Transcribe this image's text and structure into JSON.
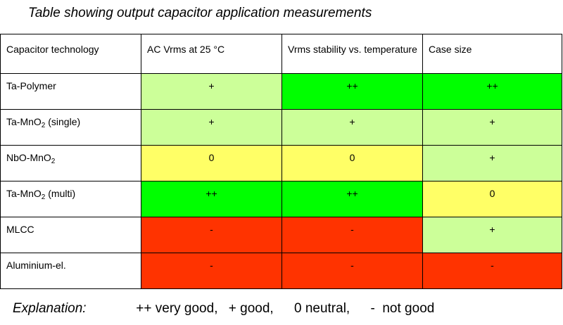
{
  "title": "Table showing output capacitor application measurements",
  "headers": [
    "Capacitor technology",
    "AC Vrms at 25 °C",
    "Vrms stability vs. temperature",
    "Case size"
  ],
  "rows": [
    {
      "tech": "Ta-Polymer",
      "values": [
        "+",
        "++",
        "++"
      ]
    },
    {
      "tech_main": "Ta-MnO",
      "tech_sub": "2",
      "tech_suffix": " (single)",
      "values": [
        "+",
        "+",
        "+"
      ]
    },
    {
      "tech_main": "NbO-MnO",
      "tech_sub": "2",
      "tech_suffix": "",
      "values": [
        "0",
        "0",
        "+"
      ]
    },
    {
      "tech_main": "Ta-MnO",
      "tech_sub": "2",
      "tech_suffix": " (multi)",
      "values": [
        "++",
        "++",
        "0"
      ]
    },
    {
      "tech": "MLCC",
      "values": [
        "-",
        "-",
        "+"
      ]
    },
    {
      "tech": "Aluminium-el.",
      "values": [
        "-",
        "-",
        "-"
      ]
    }
  ],
  "colors": {
    "very_good": "#00ff00",
    "good": "#ccff99",
    "neutral": "#ffff66",
    "not_good": "#ff3300"
  },
  "legend": {
    "label": "Explanation:",
    "items": [
      "++ very good,",
      "+ good,",
      "0 neutral,",
      "-  not good"
    ]
  }
}
